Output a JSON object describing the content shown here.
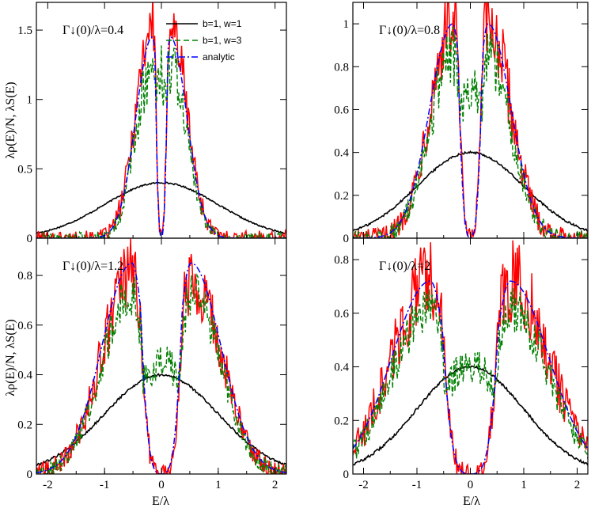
{
  "chart_data": [
    {
      "type": "line",
      "panel_label": "Γ↓(0)/λ=0.4",
      "xlim": [
        -2.2,
        2.2
      ],
      "ylim": [
        0,
        1.7
      ],
      "xticks": [
        -2,
        -1,
        0,
        1,
        2
      ],
      "yticks": [
        0,
        0.5,
        1,
        1.5
      ],
      "ytick_labels": [
        "0",
        "0.5",
        "1",
        "1.5"
      ],
      "analytic": {
        "center": 0.16,
        "width": 0.12,
        "amp": 1.45
      },
      "noisy_red": {
        "amp": 1.55,
        "noise": 0.18
      },
      "noisy_green": {
        "center": 0.15,
        "width": 0.14,
        "amp": 1.2,
        "noise": 0.15
      },
      "gaussian_peak": 0.4
    },
    {
      "type": "line",
      "panel_label": "Γ↓(0)/λ=0.8",
      "xlim": [
        -2.2,
        2.2
      ],
      "ylim": [
        0,
        1.1
      ],
      "xticks": [
        -2,
        -1,
        0,
        1,
        2
      ],
      "yticks": [
        0,
        0.2,
        0.4,
        0.6,
        0.8,
        1.0
      ],
      "ytick_labels": [
        "0",
        "0.2",
        "0.4",
        "0.6",
        "0.8",
        "1"
      ],
      "analytic": {
        "center": 0.33,
        "width": 0.18,
        "amp": 1.0
      },
      "noisy_red": {
        "amp": 1.0,
        "noise": 0.15
      },
      "noisy_green": {
        "center": 0.0,
        "width": 0.35,
        "amp": 0.7,
        "noise": 0.12
      },
      "gaussian_peak": 0.4
    },
    {
      "type": "line",
      "panel_label": "Γ↓(0)/λ=1.2",
      "xlim": [
        -2.2,
        2.2
      ],
      "ylim": [
        0,
        0.95
      ],
      "xticks": [
        -2,
        -1,
        0,
        1,
        2
      ],
      "yticks": [
        0,
        0.2,
        0.4,
        0.6,
        0.8
      ],
      "ytick_labels": [
        "0",
        "0.2",
        "0.4",
        "0.6",
        "0.8"
      ],
      "analytic": {
        "center": 0.52,
        "width": 0.22,
        "amp": 0.85
      },
      "noisy_red": {
        "amp": 0.8,
        "noise": 0.12
      },
      "noisy_green": {
        "center": 0.0,
        "width": 0.5,
        "amp": 0.45,
        "noise": 0.1
      },
      "gaussian_peak": 0.4
    },
    {
      "type": "line",
      "panel_label": "Γ↓(0)/λ=2",
      "xlim": [
        -2.2,
        2.2
      ],
      "ylim": [
        0,
        0.88
      ],
      "xticks": [
        -2,
        -1,
        0,
        1,
        2
      ],
      "yticks": [
        0,
        0.2,
        0.4,
        0.6,
        0.8
      ],
      "ytick_labels": [
        "0",
        "0.2",
        "0.4",
        "0.6",
        "0.8"
      ],
      "analytic": {
        "center": 0.75,
        "width": 0.3,
        "amp": 0.72
      },
      "noisy_red": {
        "amp": 0.72,
        "noise": 0.12
      },
      "noisy_green": {
        "center": 0.0,
        "width": 0.7,
        "amp": 0.4,
        "noise": 0.1
      },
      "gaussian_peak": 0.4
    }
  ],
  "legend": [
    {
      "label": "b=1, w=1",
      "color": "#000000",
      "dash": "none"
    },
    {
      "label": "b=1, w=3",
      "color": "#008000",
      "dash": "7,4"
    },
    {
      "label": "analytic",
      "color": "#0000ff",
      "dash": "8,3,2,3"
    }
  ],
  "series_colors": {
    "black": "#000000",
    "red": "#ff0000",
    "green": "#008000",
    "blue": "#0000ff"
  },
  "axis_labels": {
    "y_top": "λρ(E)/N, λS(E)",
    "y_bottom": "λρ(E)/N, λS(E)",
    "x_left": "E/λ",
    "x_right": "E/λ"
  },
  "x_tick_labels": [
    "-2",
    "-1",
    "0",
    "1",
    "2"
  ]
}
